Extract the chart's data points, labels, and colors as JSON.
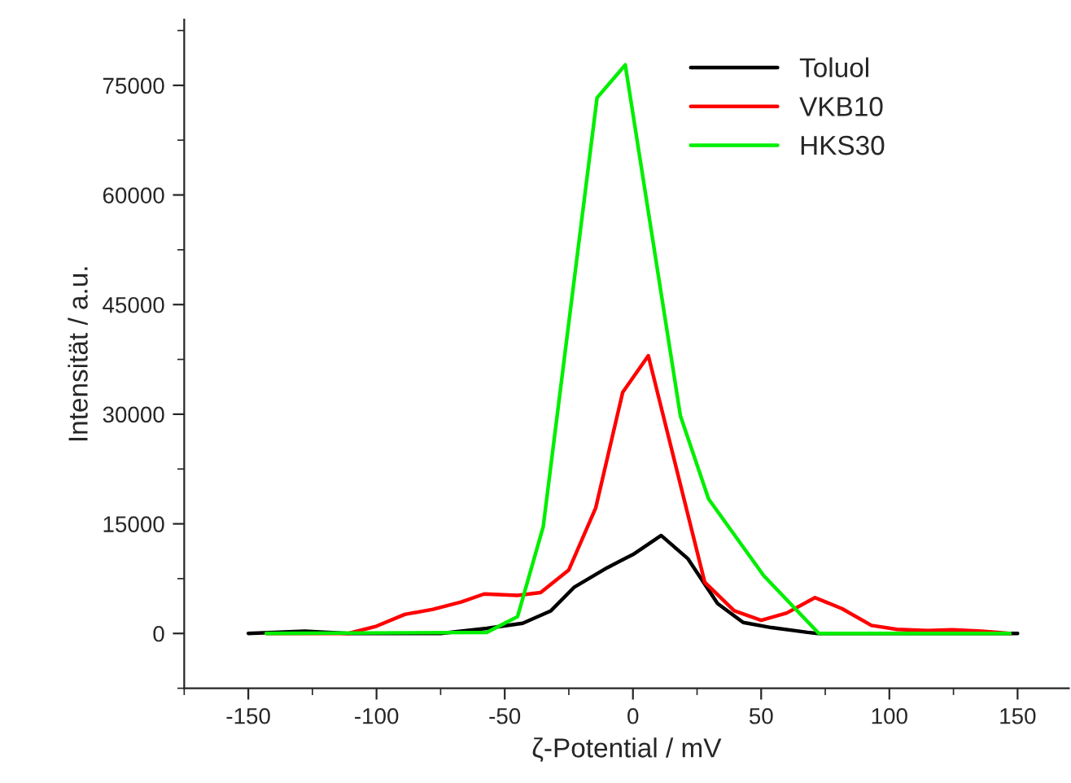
{
  "chart_data": {
    "type": "line",
    "xlabel": "ζ-Potential / mV",
    "ylabel": "Intensität / a.u.",
    "xlim": [
      -175,
      170
    ],
    "xticks": [
      -150,
      -100,
      -50,
      0,
      50,
      100,
      150
    ],
    "ylim": [
      -7500,
      84000
    ],
    "yticks": [
      0,
      15000,
      30000,
      45000,
      60000,
      75000
    ],
    "grid": false,
    "legend": "top right",
    "marker": "none",
    "line_style": "solid",
    "series": [
      {
        "name": "Toluol",
        "color": "#000000",
        "x": [
          -150,
          -128,
          -111,
          -75,
          -57,
          -43,
          -32,
          -23,
          -10,
          0,
          11,
          21.5,
          33,
          43,
          54,
          68,
          72,
          150
        ],
        "values": [
          0,
          300,
          0,
          0,
          700,
          1400,
          3100,
          6300,
          9000,
          10800,
          13400,
          10200,
          4100,
          1500,
          800,
          150,
          0,
          0
        ]
      },
      {
        "name": "VKB10",
        "color": "#ff0000",
        "x": [
          -143,
          -111,
          -100,
          -89,
          -78,
          -67,
          -58,
          -45,
          -36,
          -25,
          -14.5,
          -4,
          6,
          28,
          39.5,
          50,
          60,
          71,
          81.5,
          93,
          103,
          115,
          124.5,
          136,
          147
        ],
        "values": [
          0,
          0,
          1000,
          2600,
          3300,
          4300,
          5400,
          5200,
          5600,
          8700,
          17200,
          33000,
          38000,
          7000,
          3100,
          1800,
          2800,
          4900,
          3400,
          1100,
          550,
          400,
          500,
          300,
          0
        ]
      },
      {
        "name": "HKS30",
        "color": "#00ee00",
        "x": [
          -143,
          -57,
          -45,
          -35,
          -14,
          -3,
          18.5,
          29.5,
          51,
          72.5,
          147
        ],
        "values": [
          0,
          150,
          2300,
          14600,
          73300,
          77800,
          29800,
          18400,
          7900,
          0,
          0
        ]
      }
    ]
  }
}
